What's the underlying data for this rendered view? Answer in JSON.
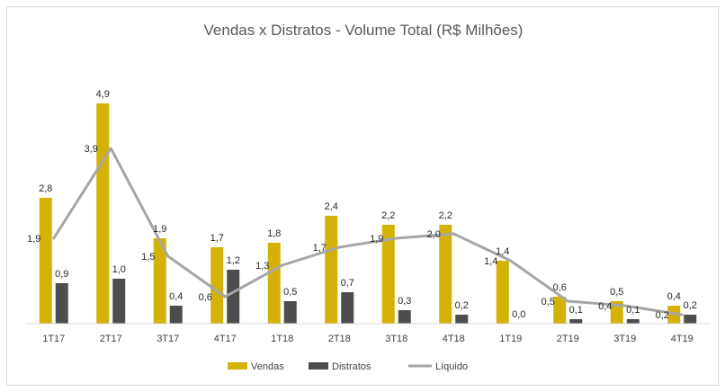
{
  "chart_data": {
    "type": "bar",
    "title": "Vendas x Distratos - Volume Total (R$ Milhões)",
    "xlabel": "",
    "ylabel": "",
    "categories": [
      "1T17",
      "2T17",
      "3T17",
      "4T17",
      "1T18",
      "2T18",
      "3T18",
      "4T18",
      "1T19",
      "2T19",
      "3T19",
      "4T19"
    ],
    "series": [
      {
        "name": "Vendas",
        "kind": "bar",
        "color": "#d4b106",
        "values": [
          2.8,
          4.9,
          1.9,
          1.7,
          1.8,
          2.4,
          2.2,
          2.2,
          1.4,
          0.6,
          0.5,
          0.4
        ],
        "labels": [
          "2,8",
          "4,9",
          "1,9",
          "1,7",
          "1,8",
          "2,4",
          "2,2",
          "2,2",
          "1,4",
          "0,6",
          "0,5",
          "0,4"
        ]
      },
      {
        "name": "Distratos",
        "kind": "bar",
        "color": "#4d4d4d",
        "values": [
          0.9,
          1.0,
          0.4,
          1.2,
          0.5,
          0.7,
          0.3,
          0.2,
          0.0,
          0.1,
          0.1,
          0.2
        ],
        "labels": [
          "0,9",
          "1,0",
          "0,4",
          "1,2",
          "0,5",
          "0,7",
          "0,3",
          "0,2",
          "0,0",
          "0,1",
          "0,1",
          "0,2"
        ]
      },
      {
        "name": "Líquido",
        "kind": "line",
        "color": "#a6a6a6",
        "values": [
          1.9,
          3.9,
          1.5,
          0.6,
          1.3,
          1.7,
          1.9,
          2.0,
          1.4,
          0.5,
          0.4,
          0.2
        ],
        "labels": [
          "1,9",
          "3,9",
          "1,5",
          "0,6",
          "1,3",
          "1,7",
          "1,9",
          "2,0",
          "1,4",
          "0,5",
          "0,4",
          "0,2"
        ]
      }
    ],
    "ylim": [
      0,
      5
    ],
    "grid": false,
    "legend_position": "bottom"
  }
}
